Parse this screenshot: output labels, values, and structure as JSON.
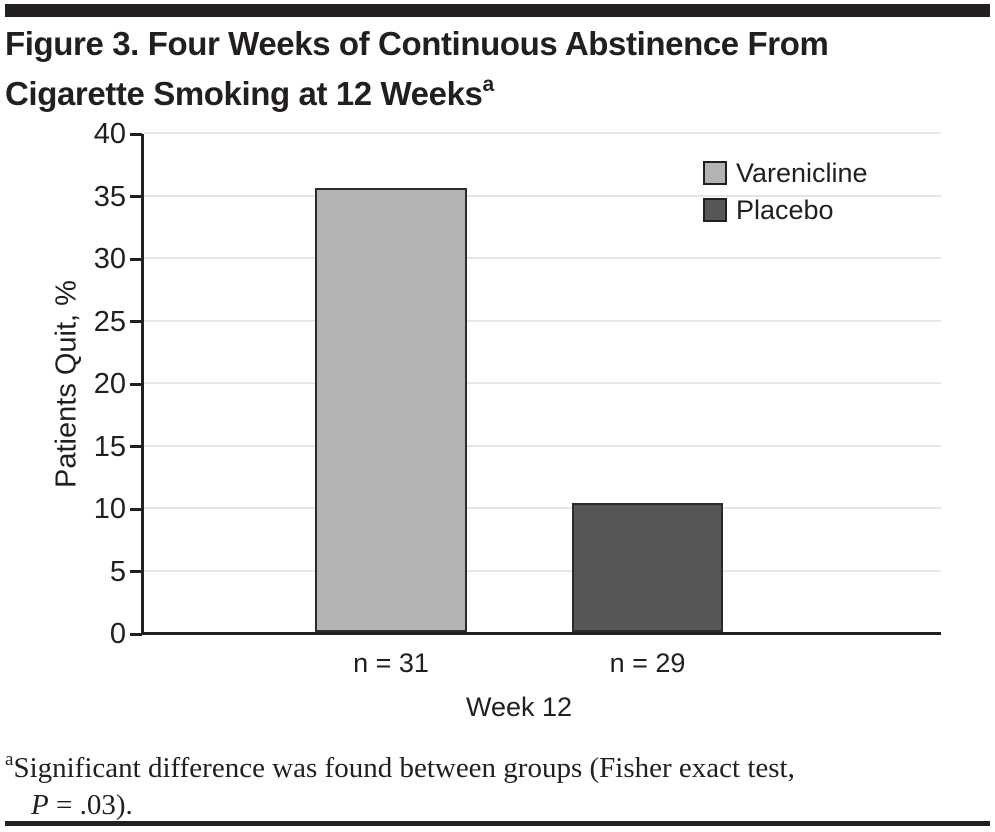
{
  "figure": {
    "title_line1": "Figure 3. Four Weeks of Continuous Abstinence From",
    "title_line2": "Cigarette Smoking at 12 Weeks",
    "title_superscript": "a"
  },
  "chart_data": {
    "type": "bar",
    "title": "Figure 3. Four Weeks of Continuous Abstinence From Cigarette Smoking at 12 Weeks",
    "ylabel": "Patients Quit, %",
    "xlabel": "Week 12",
    "ylim": [
      0,
      40
    ],
    "yticks": [
      0,
      5,
      10,
      15,
      20,
      25,
      30,
      35,
      40
    ],
    "grid": true,
    "legend_position": "top-right",
    "categories": [
      "Week 12"
    ],
    "series": [
      {
        "name": "Varenicline",
        "values": [
          35.5
        ],
        "n_label": "n = 31",
        "color": "#b3b3b3"
      },
      {
        "name": "Placebo",
        "values": [
          10.3
        ],
        "n_label": "n = 29",
        "color": "#565656"
      }
    ]
  },
  "footnote": {
    "superscript": "a",
    "text": "Significant difference was found between groups (Fisher exact test,",
    "p_symbol": "P",
    "p_rest": " = .03)."
  },
  "colors": {
    "rule": "#231f20",
    "axis": "#231f20",
    "gridline": "#e6e6e6",
    "text": "#231f20",
    "varenicline_bar": "#b3b3b3",
    "placebo_bar": "#565656"
  }
}
